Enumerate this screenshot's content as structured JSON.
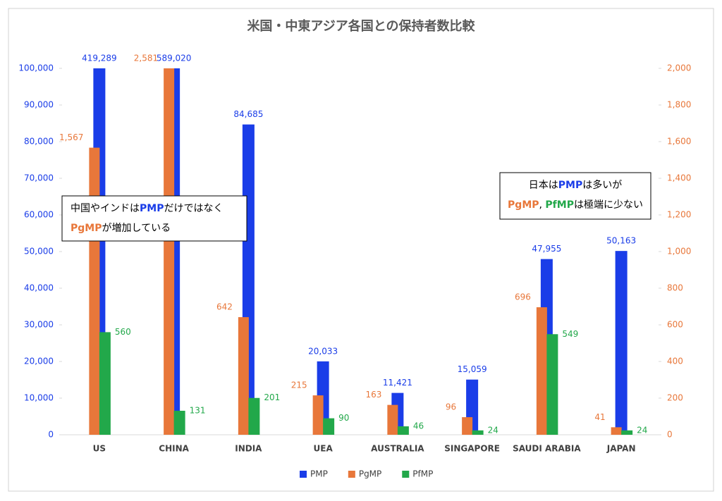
{
  "chart_data": {
    "type": "bar",
    "title": "米国・中東アジア各国との保持者数比較",
    "categories": [
      "US",
      "CHINA",
      "INDIA",
      "UEA",
      "AUSTRALIA",
      "SINGAPORE",
      "SAUDI ARABIA",
      "JAPAN"
    ],
    "series": [
      {
        "name": "PMP",
        "color": "#1a3de8",
        "axis": "y",
        "values": [
          419289,
          589020,
          84685,
          20033,
          11421,
          15059,
          47955,
          50163
        ],
        "value_labels": [
          "419,289",
          "589,020",
          "84,685",
          "20,033",
          "11,421",
          "15,059",
          "47,955",
          "50,163"
        ]
      },
      {
        "name": "PgMP",
        "color": "#e8773a",
        "axis": "y2",
        "values": [
          1567,
          2581,
          642,
          215,
          163,
          96,
          696,
          41
        ],
        "value_labels": [
          "1,567",
          "2,581",
          "642",
          "215",
          "163",
          "96",
          "696",
          "41"
        ]
      },
      {
        "name": "PfMP",
        "color": "#22a84a",
        "axis": "y2",
        "values": [
          560,
          131,
          201,
          90,
          46,
          24,
          549,
          24
        ],
        "value_labels": [
          "560",
          "131",
          "201",
          "90",
          "46",
          "24",
          "549",
          "24"
        ]
      }
    ],
    "ylim": [
      0,
      100000
    ],
    "yticks": [
      0,
      {
        "value": 10000,
        "label": "10,000"
      },
      {
        "value": 20000,
        "label": "20,000"
      },
      {
        "value": 30000,
        "label": "30,000"
      },
      {
        "value": 40000,
        "label": "40,000"
      },
      {
        "value": 50000,
        "label": "50,000"
      },
      {
        "value": 60000,
        "label": "60,000"
      },
      {
        "value": 70000,
        "label": "70,000"
      },
      {
        "value": 80000,
        "label": "80,000"
      },
      {
        "value": 90000,
        "label": "90,000"
      },
      {
        "value": 100000,
        "label": "100,000"
      }
    ],
    "y2lim": [
      0,
      2000
    ],
    "y2ticks": [
      0,
      200,
      400,
      600,
      800,
      {
        "value": 1000,
        "label": "1,000"
      },
      {
        "value": 1200,
        "label": "1,200"
      },
      {
        "value": 1400,
        "label": "1,400"
      },
      {
        "value": 1600,
        "label": "1,600"
      },
      {
        "value": 1800,
        "label": "1,800"
      },
      {
        "value": 2000,
        "label": "2,000"
      }
    ],
    "legend": "bottom",
    "annotations": [
      {
        "lines": [
          [
            {
              "text": "中国やインドは"
            },
            {
              "text": "PMP",
              "color": "#1a3de8"
            },
            {
              "text": "だけではなく"
            }
          ],
          [
            {
              "text": "PgMP",
              "color": "#e8773a"
            },
            {
              "text": "が増加している"
            }
          ]
        ]
      },
      {
        "lines": [
          [
            {
              "text": "日本は"
            },
            {
              "text": "PMP",
              "color": "#1a3de8"
            },
            {
              "text": "は多いが"
            }
          ],
          [
            {
              "text": "PgMP",
              "color": "#e8773a"
            },
            {
              "text": ", "
            },
            {
              "text": "PfMP",
              "color": "#22a84a"
            },
            {
              "text": "は極端に少ない"
            }
          ]
        ]
      }
    ]
  }
}
